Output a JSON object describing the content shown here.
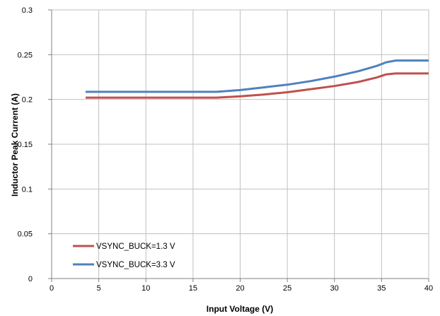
{
  "chart_data": {
    "type": "line",
    "title": "",
    "xlabel": "Input Voltage (V)",
    "ylabel": "Inductor Peak Current (A)",
    "xlim": [
      0,
      40
    ],
    "ylim": [
      0,
      0.3
    ],
    "xticks": [
      0,
      5,
      10,
      15,
      20,
      25,
      30,
      35,
      40
    ],
    "xtick_labels": [
      "0",
      "5",
      "10",
      "15",
      "20",
      "25",
      "30",
      "35",
      "40"
    ],
    "yticks": [
      0,
      0.05,
      0.1,
      0.15,
      0.2,
      0.25,
      0.3
    ],
    "ytick_labels": [
      "0",
      "0.05",
      "0.1",
      "0.15",
      "0.2",
      "0.25",
      "0.3"
    ],
    "grid": "vertical and horizontal major gridlines",
    "legend_position": "bottom-left",
    "series": [
      {
        "name": "VSYNC_BUCK=1.3 V",
        "color": "#c0504d",
        "x": [
          3.6,
          10,
          17.5,
          20,
          22.5,
          25,
          27.5,
          30,
          32.5,
          34.5,
          35.5,
          36.5,
          40
        ],
        "y": [
          0.202,
          0.202,
          0.202,
          0.2035,
          0.2055,
          0.208,
          0.2115,
          0.215,
          0.2195,
          0.2245,
          0.228,
          0.229,
          0.229
        ]
      },
      {
        "name": "VSYNC_BUCK=3.3 V",
        "color": "#4f81bd",
        "x": [
          3.6,
          10,
          17.5,
          20,
          22.5,
          25,
          27.5,
          30,
          32.5,
          34.5,
          35.5,
          36.5,
          40
        ],
        "y": [
          0.2085,
          0.2085,
          0.2085,
          0.2105,
          0.2135,
          0.2165,
          0.2205,
          0.2255,
          0.2315,
          0.2375,
          0.2415,
          0.2435,
          0.2435
        ]
      }
    ]
  },
  "colors": {
    "grid": "#c0c0c0",
    "axis": "#808080"
  }
}
